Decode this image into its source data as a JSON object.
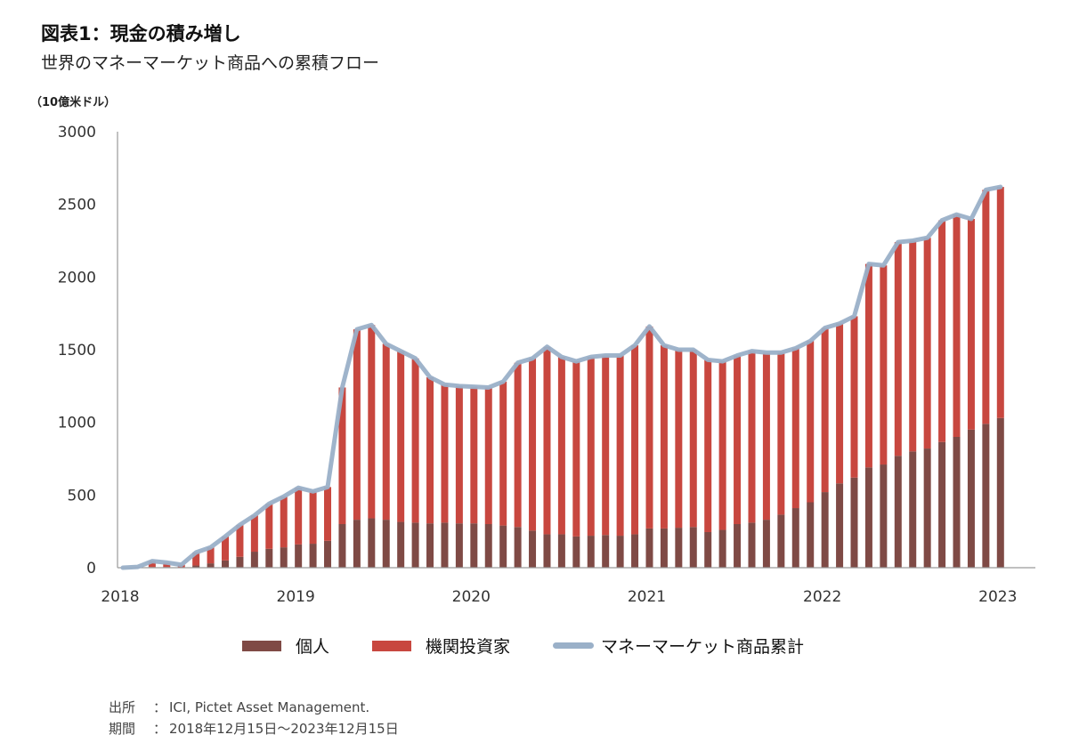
{
  "header": {
    "title": "図表1：現金の積み増し",
    "subtitle": "世界のマネーマーケット商品への累積フロー",
    "unit": "（10億米ドル）"
  },
  "legend": [
    {
      "label": "個人",
      "color": "#7f4a45",
      "kind": "bar"
    },
    {
      "label": "機関投資家",
      "color": "#c8473f",
      "kind": "bar"
    },
    {
      "label": "マネーマーケット商品累計",
      "color": "#9ab0c8",
      "kind": "line"
    }
  ],
  "footer": {
    "source_key": "出所",
    "source_value": "ICI, Pictet Asset Management.",
    "period_key": "期間",
    "period_value": "2018年12月15日～2023年12月15日",
    "separator": "："
  },
  "chart_data": {
    "type": "bar",
    "stacked": true,
    "title": "図表1：現金の積み増し",
    "subtitle": "世界のマネーマーケット商品への累積フロー",
    "ylabel": "（10億米ドル）",
    "xlabel": "",
    "ylim": [
      0,
      3000
    ],
    "yticks": [
      0,
      500,
      1000,
      1500,
      2000,
      2500,
      3000
    ],
    "xticks": [
      "2018",
      "2019",
      "2020",
      "2021",
      "2022",
      "2023"
    ],
    "x_range": [
      2018,
      2023
    ],
    "points_per_year": 12,
    "grid": false,
    "legend_position": "bottom",
    "series": [
      {
        "name": "個人",
        "type": "bar",
        "color": "#7f4a45",
        "values": [
          0,
          0,
          5,
          5,
          3,
          15,
          30,
          50,
          75,
          110,
          130,
          140,
          160,
          165,
          185,
          300,
          330,
          340,
          330,
          315,
          310,
          305,
          310,
          305,
          305,
          300,
          290,
          280,
          255,
          230,
          230,
          215,
          220,
          225,
          220,
          230,
          270,
          270,
          275,
          280,
          245,
          260,
          300,
          310,
          330,
          365,
          410,
          450,
          520,
          580,
          620,
          690,
          710,
          770,
          800,
          820,
          865,
          900,
          950,
          990,
          1030
        ]
      },
      {
        "name": "機関投資家",
        "type": "bar",
        "color": "#c8473f",
        "values": [
          0,
          5,
          40,
          30,
          17,
          90,
          110,
          165,
          220,
          250,
          310,
          350,
          390,
          360,
          370,
          940,
          1310,
          1330,
          1210,
          1175,
          1130,
          1005,
          950,
          945,
          940,
          940,
          990,
          1130,
          1185,
          1290,
          1220,
          1205,
          1230,
          1235,
          1240,
          1300,
          1390,
          1260,
          1225,
          1220,
          1185,
          1160,
          1160,
          1180,
          1150,
          1115,
          1100,
          1110,
          1130,
          1100,
          1110,
          1400,
          1370,
          1470,
          1450,
          1450,
          1525,
          1530,
          1450,
          1610,
          1590
        ]
      },
      {
        "name": "マネーマーケット商品累計",
        "type": "line",
        "color": "#9ab0c8",
        "values": [
          0,
          5,
          45,
          35,
          20,
          105,
          140,
          215,
          295,
          360,
          440,
          490,
          550,
          525,
          555,
          1240,
          1640,
          1670,
          1540,
          1490,
          1440,
          1310,
          1260,
          1250,
          1245,
          1240,
          1280,
          1410,
          1440,
          1520,
          1450,
          1420,
          1450,
          1460,
          1460,
          1530,
          1660,
          1530,
          1500,
          1500,
          1430,
          1420,
          1460,
          1490,
          1480,
          1480,
          1510,
          1560,
          1650,
          1680,
          1730,
          2090,
          2080,
          2240,
          2250,
          2270,
          2390,
          2430,
          2400,
          2600,
          2620
        ]
      }
    ]
  }
}
